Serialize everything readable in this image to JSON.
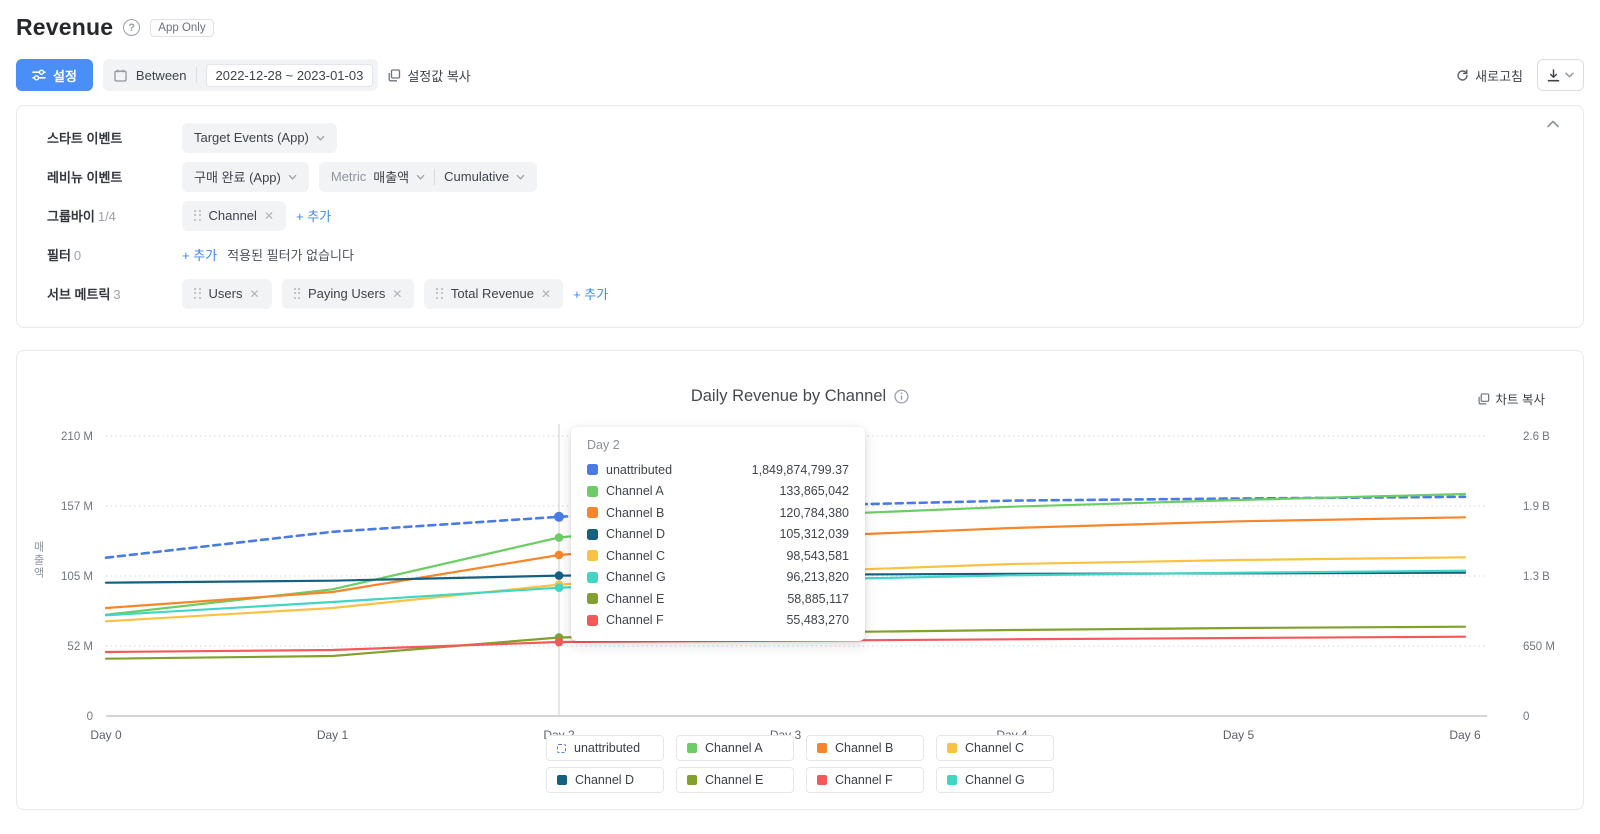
{
  "header": {
    "title": "Revenue",
    "badge": "App Only"
  },
  "toolbar": {
    "settings_button": "설정",
    "date_mode": "Between",
    "date_range": "2022-12-28 ~ 2023-01-03",
    "copy_settings": "설정값 복사",
    "refresh": "새로고침"
  },
  "settings": {
    "start_event": {
      "label": "스타트 이벤트",
      "value": "Target Events (App)"
    },
    "revenue_event": {
      "label": "레비뉴 이벤트",
      "event": "구매 완료 (App)",
      "metric_label": "Metric",
      "metric": "매출액",
      "mode": "Cumulative"
    },
    "group_by": {
      "label": "그룹바이",
      "count": "1/4",
      "chip": "Channel",
      "add": "+ 추가"
    },
    "filter": {
      "label": "필터",
      "count": "0",
      "add": "+ 추가",
      "empty": "적용된 필터가 없습니다"
    },
    "sub_metrics": {
      "label": "서브 메트릭",
      "count": "3",
      "chips": [
        "Users",
        "Paying Users",
        "Total Revenue"
      ],
      "add": "+ 추가"
    }
  },
  "chart": {
    "title": "Daily Revenue by Channel",
    "copy_button": "차트 복사",
    "y_axis_label": "매출액"
  },
  "chart_data": {
    "type": "line",
    "title": "Daily Revenue by Channel",
    "x_categories": [
      "Day 0",
      "Day 1",
      "Day 2",
      "Day 3",
      "Day 4",
      "Day 5",
      "Day 6"
    ],
    "left_axis": {
      "label": "매출액",
      "ticks": [
        "210 M",
        "157 M",
        "105 M",
        "52 M",
        "0"
      ],
      "max": 210000000
    },
    "right_axis": {
      "ticks": [
        "2.6 B",
        "1.9 B",
        "1.3 B",
        "650 M",
        "0"
      ],
      "max": 2600000000
    },
    "highlight_x": "Day 2",
    "series": [
      {
        "name": "unattributed",
        "color": "#4a7be5",
        "dashed": true,
        "axis": "right",
        "values": [
          1470000000,
          1710000000,
          1849874799.37,
          1950000000,
          2000000000,
          2020000000,
          2035000000
        ]
      },
      {
        "name": "Channel A",
        "color": "#6bcd63",
        "dashed": false,
        "axis": "left",
        "values": [
          76000000,
          95000000,
          133865042,
          150000000,
          157000000,
          162000000,
          166500000
        ]
      },
      {
        "name": "Channel B",
        "color": "#f7852a",
        "dashed": false,
        "axis": "left",
        "values": [
          81000000,
          93000000,
          120784380,
          134000000,
          141000000,
          146000000,
          149000000
        ]
      },
      {
        "name": "Channel C",
        "color": "#f9c242",
        "dashed": false,
        "axis": "left",
        "values": [
          71000000,
          81000000,
          98543581,
          108000000,
          114000000,
          117000000,
          119000000
        ]
      },
      {
        "name": "Channel D",
        "color": "#16607f",
        "dashed": false,
        "axis": "left",
        "values": [
          100000000,
          101500000,
          105312039,
          106000000,
          106600000,
          107000000,
          107500000
        ]
      },
      {
        "name": "Channel E",
        "color": "#81a02c",
        "dashed": false,
        "axis": "left",
        "values": [
          43000000,
          45000000,
          58885117,
          62500000,
          64500000,
          66000000,
          67000000
        ]
      },
      {
        "name": "Channel F",
        "color": "#f25a5a",
        "dashed": false,
        "axis": "left",
        "values": [
          48000000,
          49500000,
          55483270,
          56500000,
          57500000,
          58500000,
          59500000
        ]
      },
      {
        "name": "Channel G",
        "color": "#41d6c4",
        "dashed": false,
        "axis": "left",
        "values": [
          75500000,
          85500000,
          96213820,
          102000000,
          105500000,
          107500000,
          109000000
        ]
      }
    ]
  },
  "tooltip": {
    "title": "Day 2",
    "rows": [
      {
        "name": "unattributed",
        "value": "1,849,874,799.37",
        "color": "#4a7be5"
      },
      {
        "name": "Channel A",
        "value": "133,865,042",
        "color": "#6bcd63"
      },
      {
        "name": "Channel B",
        "value": "120,784,380",
        "color": "#f7852a"
      },
      {
        "name": "Channel D",
        "value": "105,312,039",
        "color": "#16607f"
      },
      {
        "name": "Channel C",
        "value": "98,543,581",
        "color": "#f9c242"
      },
      {
        "name": "Channel G",
        "value": "96,213,820",
        "color": "#41d6c4"
      },
      {
        "name": "Channel E",
        "value": "58,885,117",
        "color": "#81a02c"
      },
      {
        "name": "Channel F",
        "value": "55,483,270",
        "color": "#f25a5a"
      }
    ]
  },
  "legend": {
    "rows": [
      [
        {
          "name": "unattributed",
          "color": "#4a7be5",
          "dashed": true
        },
        {
          "name": "Channel A",
          "color": "#6bcd63",
          "dashed": false
        },
        {
          "name": "Channel B",
          "color": "#f7852a",
          "dashed": false
        },
        {
          "name": "Channel C",
          "color": "#f9c242",
          "dashed": false
        }
      ],
      [
        {
          "name": "Channel D",
          "color": "#16607f",
          "dashed": false
        },
        {
          "name": "Channel E",
          "color": "#81a02c",
          "dashed": false
        },
        {
          "name": "Channel F",
          "color": "#f25a5a",
          "dashed": false
        },
        {
          "name": "Channel G",
          "color": "#41d6c4",
          "dashed": false
        }
      ]
    ]
  }
}
